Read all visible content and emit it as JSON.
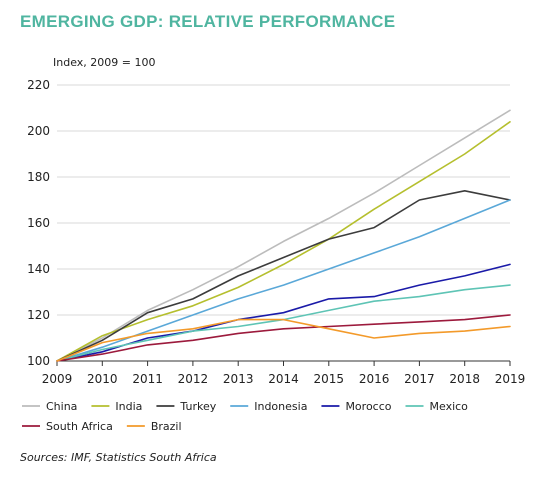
{
  "header": {
    "title": "EMERGING GDP: RELATIVE PERFORMANCE"
  },
  "footer": {
    "source": "Sources: IMF, Statistics South Africa"
  },
  "chart_data": {
    "type": "line",
    "title": "EMERGING GDP: RELATIVE PERFORMANCE",
    "ylabel": "Index, 2009 = 100",
    "xlabel": "",
    "x": [
      2009,
      2010,
      2011,
      2012,
      2013,
      2014,
      2015,
      2016,
      2017,
      2018,
      2019
    ],
    "xlim": [
      2009,
      2019
    ],
    "ylim": [
      100,
      220
    ],
    "yticks": [
      100,
      120,
      140,
      160,
      180,
      200,
      220
    ],
    "grid": "horizontal",
    "legend": "bottom",
    "series": [
      {
        "name": "China",
        "color": "#bcbcbc",
        "values": [
          100,
          110,
          122,
          131,
          141,
          152,
          162,
          173,
          185,
          197,
          209
        ]
      },
      {
        "name": "India",
        "color": "#b5bf2e",
        "values": [
          100,
          111,
          118,
          124,
          132,
          142,
          153,
          166,
          178,
          190,
          204
        ]
      },
      {
        "name": "Turkey",
        "color": "#3c3c3c",
        "values": [
          100,
          109,
          121,
          127,
          137,
          145,
          153,
          158,
          170,
          174,
          170
        ]
      },
      {
        "name": "Indonesia",
        "color": "#5aa8d8",
        "values": [
          100,
          106,
          113,
          120,
          127,
          133,
          140,
          147,
          154,
          162,
          170
        ]
      },
      {
        "name": "Morocco",
        "color": "#1a1aa8",
        "values": [
          100,
          104,
          110,
          113,
          118,
          121,
          127,
          128,
          133,
          137,
          142
        ]
      },
      {
        "name": "Mexico",
        "color": "#5ec4b5",
        "values": [
          100,
          105,
          109,
          113,
          115,
          118,
          122,
          126,
          128,
          131,
          133
        ]
      },
      {
        "name": "South Africa",
        "color": "#9c1a3c",
        "values": [
          100,
          103,
          107,
          109,
          112,
          114,
          115,
          116,
          117,
          118,
          120
        ]
      },
      {
        "name": "Brazil",
        "color": "#f39a2a",
        "values": [
          100,
          108,
          112,
          114,
          118,
          118,
          114,
          110,
          112,
          113,
          115
        ]
      }
    ]
  }
}
